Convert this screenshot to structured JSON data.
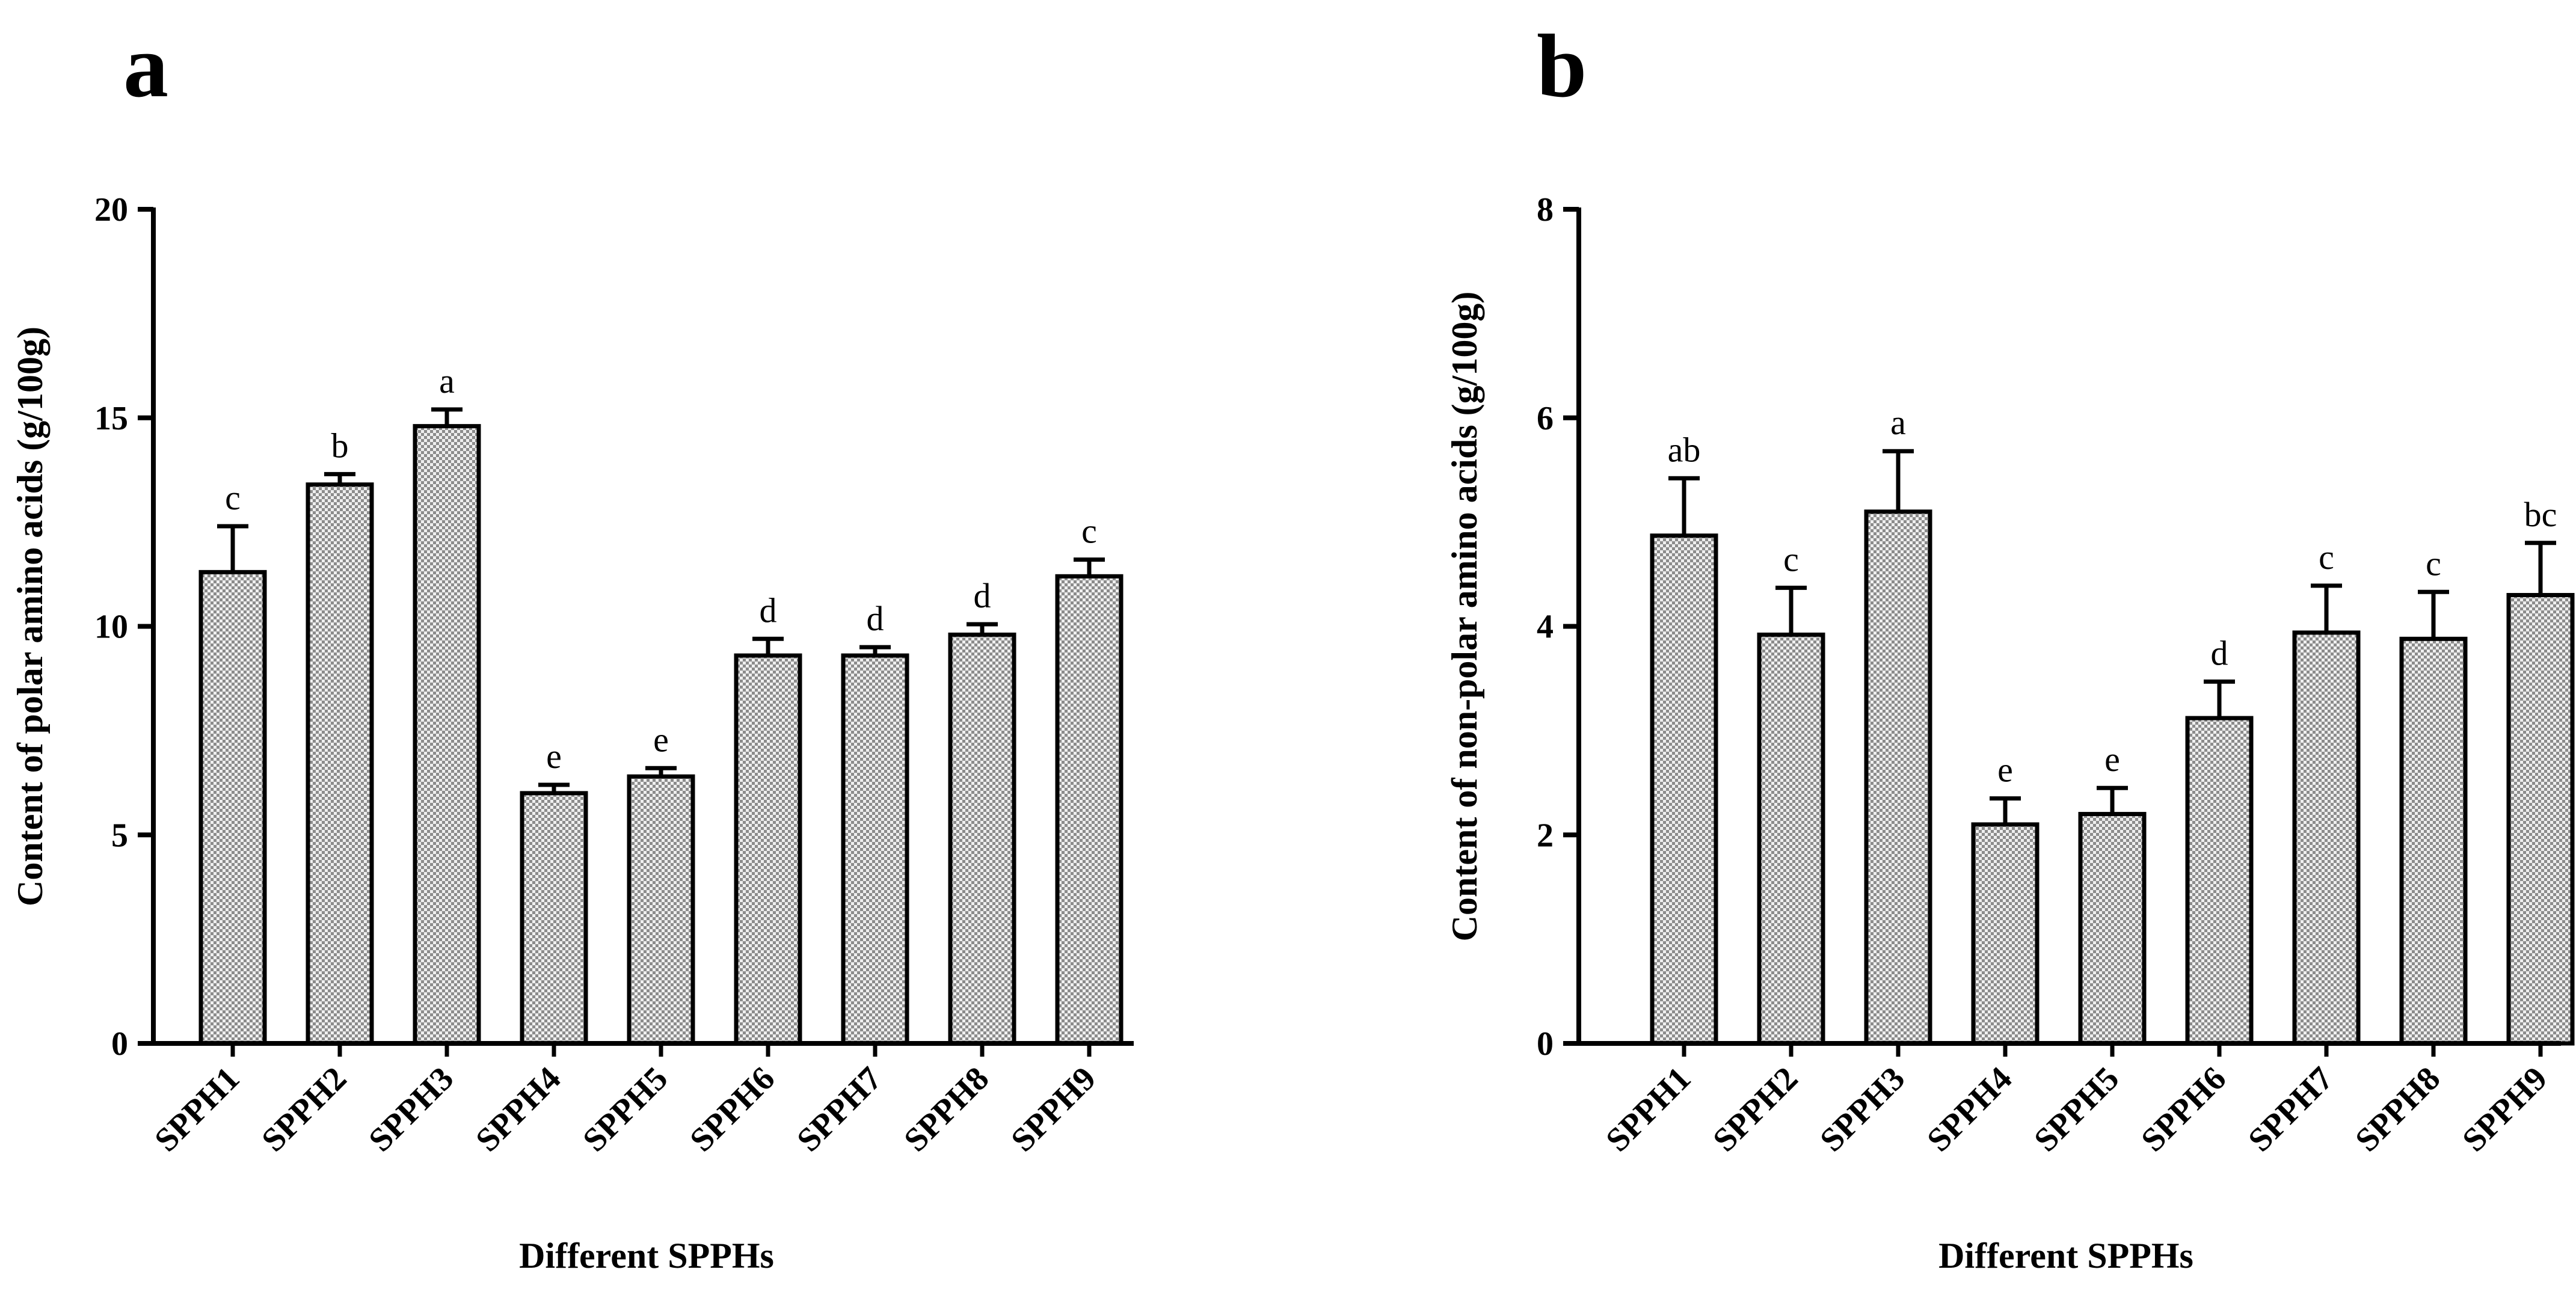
{
  "chart_data": [
    {
      "type": "bar",
      "panel_label": "a",
      "categories": [
        "SPPH1",
        "SPPH2",
        "SPPH3",
        "SPPH4",
        "SPPH5",
        "SPPH6",
        "SPPH7",
        "SPPH8",
        "SPPH9"
      ],
      "values": [
        11.3,
        13.4,
        14.8,
        6.0,
        6.4,
        9.3,
        9.3,
        9.8,
        11.2
      ],
      "errors": [
        1.1,
        0.25,
        0.4,
        0.2,
        0.2,
        0.4,
        0.2,
        0.25,
        0.4
      ],
      "significance": [
        "c",
        "b",
        "a",
        "e",
        "e",
        "d",
        "d",
        "d",
        "c"
      ],
      "xlabel": "Different SPPHs",
      "ylabel": "Content of polar amino acids (g/100g)",
      "ylim": [
        0,
        20
      ],
      "yticks": [
        0,
        5,
        10,
        15,
        20
      ],
      "bar_color": "#d4d4d4",
      "bar_pattern": "checkered"
    },
    {
      "type": "bar",
      "panel_label": "b",
      "categories": [
        "SPPH1",
        "SPPH2",
        "SPPH3",
        "SPPH4",
        "SPPH5",
        "SPPH6",
        "SPPH7",
        "SPPH8",
        "SPPH9"
      ],
      "values": [
        4.87,
        3.92,
        5.1,
        2.1,
        2.2,
        3.12,
        3.94,
        3.88,
        4.3
      ],
      "errors": [
        0.55,
        0.45,
        0.58,
        0.25,
        0.25,
        0.35,
        0.45,
        0.45,
        0.5
      ],
      "significance": [
        "ab",
        "c",
        "a",
        "e",
        "e",
        "d",
        "c",
        "c",
        "bc"
      ],
      "xlabel": "Different SPPHs",
      "ylabel": "Content of non-polar amino acids (g/100g)",
      "ylim": [
        0,
        8
      ],
      "yticks": [
        0,
        2,
        4,
        6,
        8
      ],
      "bar_color": "#d4d4d4",
      "bar_pattern": "checkered"
    }
  ]
}
